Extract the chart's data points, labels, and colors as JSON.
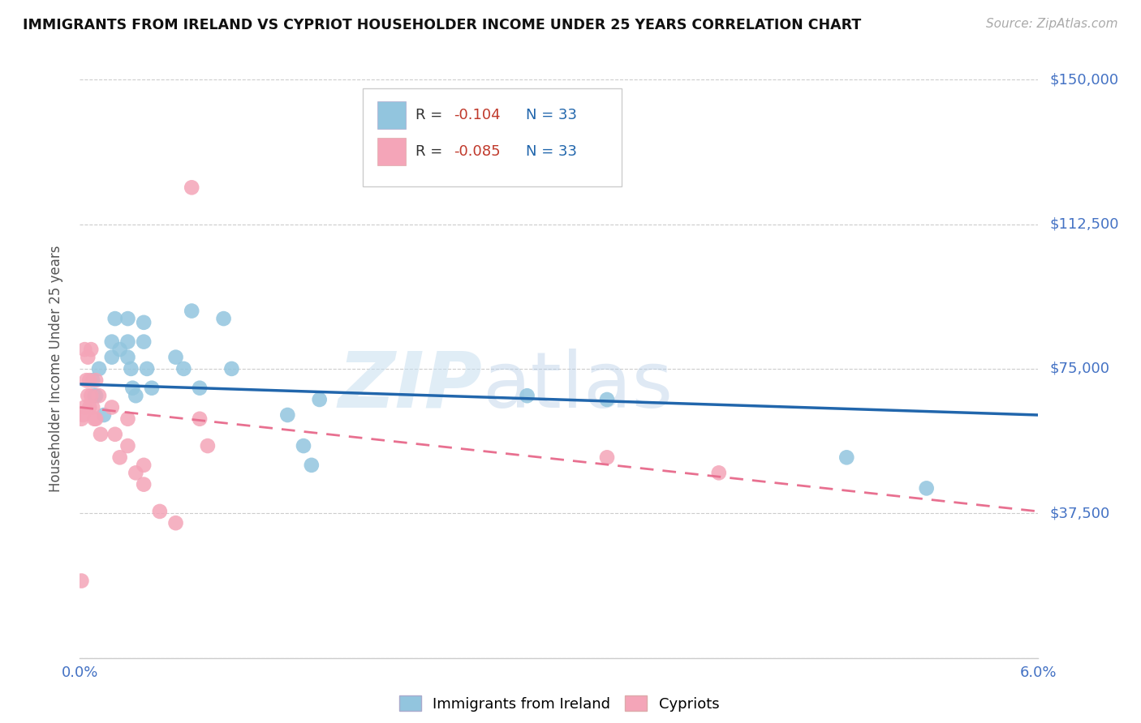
{
  "title": "IMMIGRANTS FROM IRELAND VS CYPRIOT HOUSEHOLDER INCOME UNDER 25 YEARS CORRELATION CHART",
  "source": "Source: ZipAtlas.com",
  "ylabel": "Householder Income Under 25 years",
  "xmin": 0.0,
  "xmax": 0.06,
  "ymin": 0,
  "ymax": 150000,
  "yticks": [
    0,
    37500,
    75000,
    112500,
    150000
  ],
  "ytick_labels": [
    "",
    "$37,500",
    "$75,000",
    "$112,500",
    "$150,000"
  ],
  "legend_label1": "Immigrants from Ireland",
  "legend_label2": "Cypriots",
  "legend_R1_prefix": "R = ",
  "legend_R1_val": "-0.104",
  "legend_R2_prefix": "R = ",
  "legend_R2_val": "-0.085",
  "legend_N1": "N = 33",
  "legend_N2": "N = 33",
  "color_blue": "#92c5de",
  "color_pink": "#f4a5b8",
  "line_color_blue": "#2166ac",
  "line_color_pink": "#e87090",
  "watermark_zip": "ZIP",
  "watermark_atlas": "atlas",
  "blue_points_x": [
    0.001,
    0.0012,
    0.0015,
    0.002,
    0.002,
    0.0022,
    0.0025,
    0.003,
    0.003,
    0.003,
    0.0032,
    0.0033,
    0.0035,
    0.004,
    0.004,
    0.0042,
    0.0045,
    0.006,
    0.0065,
    0.007,
    0.0075,
    0.009,
    0.0095,
    0.013,
    0.014,
    0.0145,
    0.015,
    0.028,
    0.033,
    0.048,
    0.053,
    0.0008,
    0.0009
  ],
  "blue_points_y": [
    68000,
    75000,
    63000,
    82000,
    78000,
    88000,
    80000,
    88000,
    82000,
    78000,
    75000,
    70000,
    68000,
    87000,
    82000,
    75000,
    70000,
    78000,
    75000,
    90000,
    70000,
    88000,
    75000,
    63000,
    55000,
    50000,
    67000,
    68000,
    67000,
    52000,
    44000,
    72000,
    68000
  ],
  "pink_points_x": [
    0.0001,
    0.0002,
    0.0003,
    0.0003,
    0.0004,
    0.0005,
    0.0005,
    0.0006,
    0.0006,
    0.0007,
    0.0007,
    0.0008,
    0.0009,
    0.001,
    0.001,
    0.0012,
    0.0013,
    0.002,
    0.0022,
    0.0025,
    0.003,
    0.003,
    0.0035,
    0.004,
    0.004,
    0.005,
    0.006,
    0.007,
    0.0075,
    0.008,
    0.033,
    0.04,
    0.0001
  ],
  "pink_points_y": [
    20000,
    63000,
    80000,
    65000,
    72000,
    78000,
    68000,
    72000,
    65000,
    80000,
    68000,
    65000,
    62000,
    72000,
    62000,
    68000,
    58000,
    65000,
    58000,
    52000,
    62000,
    55000,
    48000,
    50000,
    45000,
    38000,
    35000,
    122000,
    62000,
    55000,
    52000,
    48000,
    62000
  ],
  "blue_line_x": [
    0.0,
    0.06
  ],
  "blue_line_y": [
    71000,
    63000
  ],
  "pink_line_x": [
    0.0,
    0.06
  ],
  "pink_line_y": [
    65000,
    38000
  ]
}
